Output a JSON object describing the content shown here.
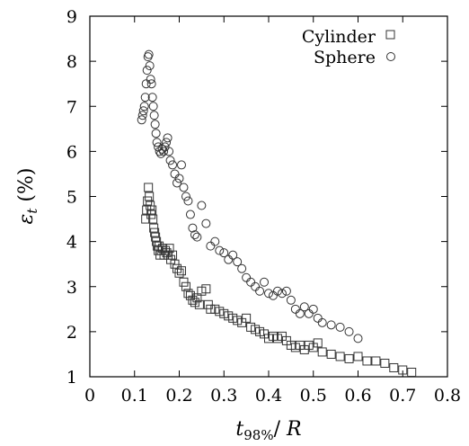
{
  "chart_data": {
    "type": "scatter",
    "title": "",
    "xlabel": "t98%/ R",
    "ylabel": "εt (%)",
    "xlim": [
      0,
      0.8
    ],
    "ylim": [
      1,
      9
    ],
    "xticks": [
      "0",
      "0.1",
      "0.2",
      "0.3",
      "0.4",
      "0.5",
      "0.6",
      "0.7",
      "0.8"
    ],
    "yticks": [
      "1",
      "2",
      "3",
      "4",
      "5",
      "6",
      "7",
      "8",
      "9"
    ],
    "grid": false,
    "legend_position": "top-right",
    "series": [
      {
        "name": "Cylinder",
        "marker": "square",
        "x": [
          0.125,
          0.127,
          0.129,
          0.131,
          0.133,
          0.135,
          0.137,
          0.139,
          0.141,
          0.143,
          0.145,
          0.147,
          0.149,
          0.151,
          0.153,
          0.155,
          0.157,
          0.16,
          0.163,
          0.166,
          0.169,
          0.172,
          0.175,
          0.178,
          0.181,
          0.185,
          0.19,
          0.195,
          0.2,
          0.205,
          0.21,
          0.215,
          0.22,
          0.225,
          0.23,
          0.235,
          0.24,
          0.245,
          0.25,
          0.26,
          0.265,
          0.27,
          0.28,
          0.29,
          0.3,
          0.31,
          0.32,
          0.33,
          0.34,
          0.35,
          0.36,
          0.37,
          0.38,
          0.39,
          0.4,
          0.41,
          0.42,
          0.43,
          0.44,
          0.45,
          0.46,
          0.47,
          0.48,
          0.49,
          0.5,
          0.51,
          0.52,
          0.54,
          0.56,
          0.58,
          0.6,
          0.62,
          0.64,
          0.66,
          0.68,
          0.7,
          0.72
        ],
        "y": [
          4.5,
          4.7,
          4.9,
          5.2,
          5.0,
          4.8,
          4.6,
          4.7,
          4.5,
          4.3,
          4.2,
          4.1,
          4.0,
          3.9,
          3.8,
          3.9,
          3.7,
          3.8,
          3.85,
          3.7,
          3.8,
          3.75,
          3.7,
          3.85,
          3.6,
          3.7,
          3.5,
          3.4,
          3.3,
          3.35,
          3.1,
          3.0,
          2.85,
          2.8,
          2.7,
          2.65,
          2.75,
          2.6,
          2.9,
          2.95,
          2.6,
          2.5,
          2.5,
          2.45,
          2.4,
          2.35,
          2.3,
          2.25,
          2.2,
          2.3,
          2.1,
          2.05,
          2.0,
          1.95,
          1.85,
          1.9,
          1.85,
          1.9,
          1.8,
          1.7,
          1.65,
          1.7,
          1.6,
          1.7,
          1.65,
          1.75,
          1.55,
          1.5,
          1.45,
          1.4,
          1.45,
          1.35,
          1.35,
          1.3,
          1.2,
          1.15,
          1.1
        ]
      },
      {
        "name": "Sphere",
        "marker": "circle",
        "x": [
          0.116,
          0.118,
          0.12,
          0.122,
          0.124,
          0.126,
          0.128,
          0.13,
          0.132,
          0.134,
          0.136,
          0.138,
          0.14,
          0.142,
          0.144,
          0.146,
          0.148,
          0.15,
          0.153,
          0.156,
          0.159,
          0.162,
          0.165,
          0.168,
          0.171,
          0.174,
          0.177,
          0.18,
          0.185,
          0.19,
          0.195,
          0.2,
          0.205,
          0.21,
          0.215,
          0.22,
          0.225,
          0.23,
          0.235,
          0.24,
          0.25,
          0.26,
          0.27,
          0.28,
          0.29,
          0.3,
          0.31,
          0.32,
          0.33,
          0.34,
          0.35,
          0.36,
          0.37,
          0.38,
          0.39,
          0.4,
          0.41,
          0.42,
          0.43,
          0.44,
          0.45,
          0.46,
          0.47,
          0.48,
          0.49,
          0.5,
          0.51,
          0.52,
          0.54,
          0.56,
          0.58,
          0.6
        ],
        "y": [
          6.7,
          6.8,
          6.9,
          7.0,
          7.2,
          7.5,
          7.8,
          8.1,
          8.15,
          7.9,
          7.6,
          7.5,
          7.2,
          7.0,
          6.8,
          6.6,
          6.4,
          6.2,
          6.1,
          6.0,
          5.95,
          6.05,
          6.0,
          6.1,
          6.2,
          6.3,
          6.0,
          5.8,
          5.7,
          5.5,
          5.3,
          5.4,
          5.7,
          5.2,
          5.0,
          4.9,
          4.6,
          4.3,
          4.15,
          4.1,
          4.8,
          4.4,
          3.9,
          4.0,
          3.8,
          3.75,
          3.6,
          3.7,
          3.55,
          3.4,
          3.2,
          3.1,
          3.0,
          2.9,
          3.1,
          2.85,
          2.8,
          2.9,
          2.85,
          2.9,
          2.7,
          2.5,
          2.4,
          2.55,
          2.4,
          2.5,
          2.3,
          2.2,
          2.15,
          2.1,
          2.0,
          1.85
        ]
      }
    ]
  }
}
